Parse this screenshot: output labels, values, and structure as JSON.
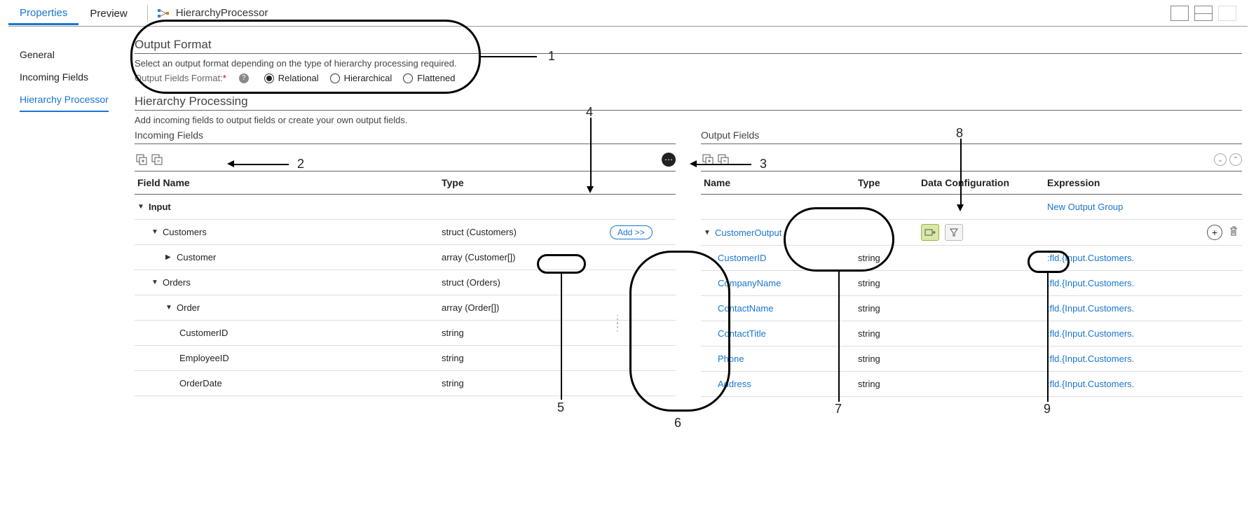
{
  "header": {
    "tabs": [
      "Properties",
      "Preview"
    ],
    "activeTab": "Properties",
    "processorName": "HierarchyProcessor"
  },
  "sidebar": {
    "items": [
      "General",
      "Incoming Fields",
      "Hierarchy Processor"
    ],
    "active": "Hierarchy Processor"
  },
  "outputFormat": {
    "title": "Output Format",
    "subtitle": "Select an output format depending on the type of hierarchy processing required.",
    "label": "Output Fields Format:",
    "options": [
      "Relational",
      "Hierarchical",
      "Flattened"
    ],
    "selected": "Relational"
  },
  "hierarchy": {
    "title": "Hierarchy Processing",
    "subtitle": "Add incoming fields to output fields or create your own output fields.",
    "incomingLabel": "Incoming Fields",
    "outputLabel": "Output Fields",
    "headers": {
      "fieldName": "Field Name",
      "type": "Type",
      "name": "Name",
      "dataConfig": "Data Configuration",
      "expression": "Expression"
    },
    "addBtn": "Add >>",
    "newGroup": "New Output Group"
  },
  "incomingTree": [
    {
      "name": "Input",
      "type": "",
      "indent": 0,
      "expanded": true,
      "toggle": true,
      "bold": true
    },
    {
      "name": "Customers",
      "type": "struct (Customers)",
      "indent": 1,
      "expanded": true,
      "toggle": true,
      "add": true
    },
    {
      "name": "Customer",
      "type": "array (Customer[])",
      "indent": 2,
      "expanded": false,
      "toggle": true
    },
    {
      "name": "Orders",
      "type": "struct (Orders)",
      "indent": 1,
      "expanded": true,
      "toggle": true
    },
    {
      "name": "Order",
      "type": "array (Order[])",
      "indent": 2,
      "expanded": true,
      "toggle": true
    },
    {
      "name": "CustomerID",
      "type": "string",
      "indent": 3
    },
    {
      "name": "EmployeeID",
      "type": "string",
      "indent": 3
    },
    {
      "name": "OrderDate",
      "type": "string",
      "indent": 3
    }
  ],
  "outputTree": [
    {
      "name": "CustomerOutput",
      "type": "",
      "indent": 0,
      "expanded": true,
      "toggle": true,
      "link": true,
      "dcRow": true,
      "actions": true
    },
    {
      "name": "CustomerID",
      "type": "string",
      "indent": 1,
      "link": true,
      "expr": ":fld.{Input.Customers."
    },
    {
      "name": "CompanyName",
      "type": "string",
      "indent": 1,
      "link": true,
      "expr": ":fld.{Input.Customers."
    },
    {
      "name": "ContactName",
      "type": "string",
      "indent": 1,
      "link": true,
      "expr": ":fld.{Input.Customers."
    },
    {
      "name": "ContactTitle",
      "type": "string",
      "indent": 1,
      "link": true,
      "expr": ":fld.{Input.Customers."
    },
    {
      "name": "Phone",
      "type": "string",
      "indent": 1,
      "link": true,
      "expr": ":fld.{Input.Customers."
    },
    {
      "name": "Address",
      "type": "string",
      "indent": 1,
      "link": true,
      "expr": ":fld.{Input.Customers."
    }
  ],
  "callouts": {
    "c1": "1",
    "c2": "2",
    "c3": "3",
    "c4": "4",
    "c5": "5",
    "c6": "6",
    "c7": "7",
    "c8": "8",
    "c9": "9"
  }
}
